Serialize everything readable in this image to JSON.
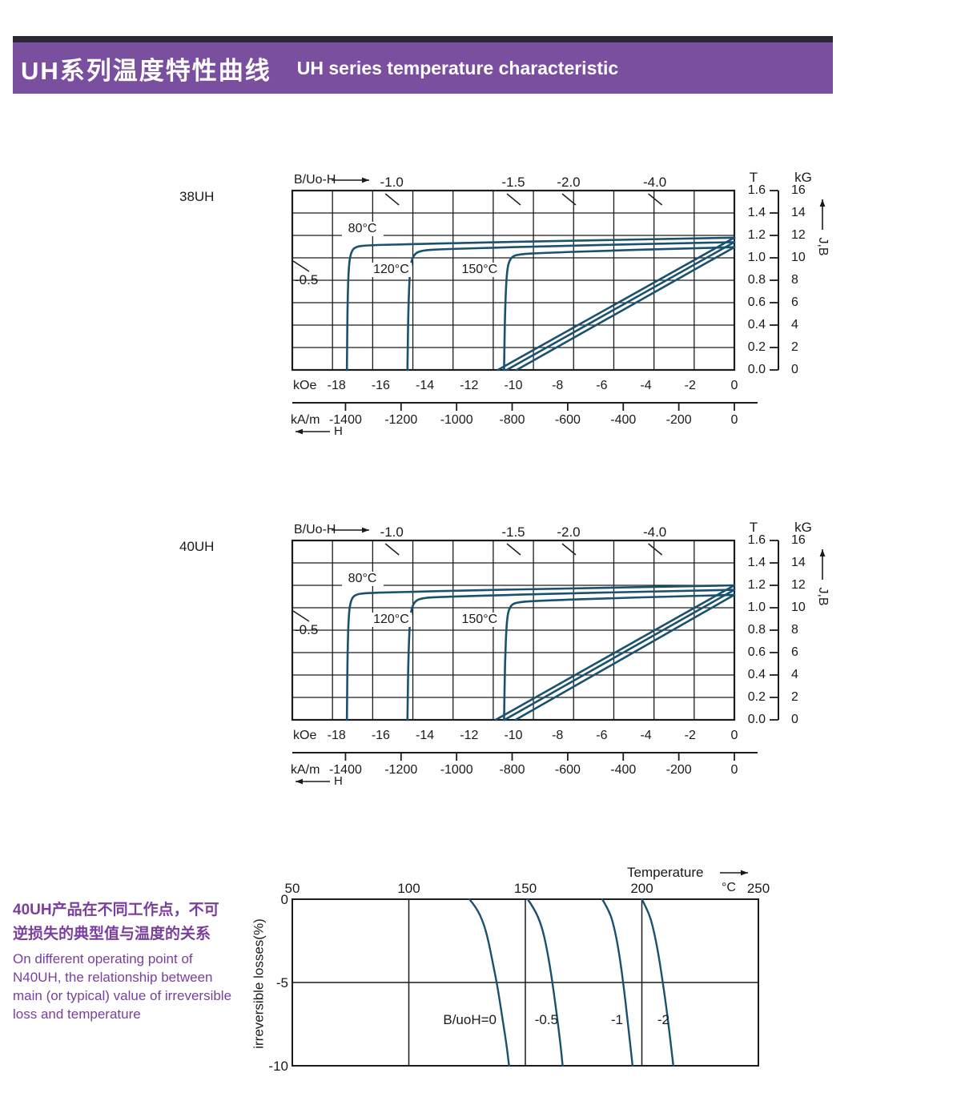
{
  "header": {
    "title_zh": "UH系列温度特性曲线",
    "title_en": "UH series temperature characteristic",
    "bg_color": "#7b4fa0",
    "strip_color": "#2c2734"
  },
  "side_text": {
    "zh1": "40UH产品在不同工作点，不可",
    "zh2": "逆损失的典型值与温度的关系",
    "en1": "On different operating point of",
    "en2": "N40UH,  the relationship between",
    "en3": "main (or typical) value of irreversible",
    "en4": "loss and temperature",
    "color": "#7a3f9d"
  },
  "colors": {
    "curve": "#19516f",
    "grid": "#1c1c1c",
    "text": "#1a1a1a"
  },
  "chart_data": [
    {
      "id": "bh38",
      "type": "line",
      "title": "38UH",
      "top_axis_label": "B/Uo-H",
      "h_arrow_label": "H",
      "right_axis_arrow_label": "J,B",
      "unit_koe": "kOe",
      "unit_kam": "kA/m",
      "unit_t": "T",
      "unit_kg": "kG",
      "xlim_kOe": [
        -20,
        0
      ],
      "ylim_T": [
        0,
        1.6
      ],
      "grid": {
        "cols": 11,
        "rows": 8
      },
      "x_ticks_kOe": [
        -18,
        -16,
        -14,
        -12,
        -10,
        -8,
        -6,
        -4,
        -2,
        0
      ],
      "x_ticks_kAm": [
        -1400,
        -1200,
        -1000,
        -800,
        -600,
        -400,
        -200,
        0
      ],
      "y_ticks_T": [
        "1.6",
        "1.4",
        "1.2",
        "1.0",
        "0.8",
        "0.6",
        "0.4",
        "0.2",
        "0.0"
      ],
      "y_ticks_kG": [
        "16",
        "14",
        "12",
        "10",
        "8",
        "6",
        "4",
        "2",
        "0"
      ],
      "load_lines_top": [
        {
          "label": "-1.0",
          "kOe": -15.5
        },
        {
          "label": "-1.5",
          "kOe": -10.0
        },
        {
          "label": "-2.0",
          "kOe": -7.5
        },
        {
          "label": "-4.0",
          "kOe": -3.6
        }
      ],
      "load_line_left": {
        "label": "-0.5",
        "T": 0.95
      },
      "temp_labels": [
        {
          "text": "80°C",
          "kOe": -16.9,
          "T": 1.26
        },
        {
          "text": "120°C",
          "kOe": -15.6,
          "T": 0.89
        },
        {
          "text": "150°C",
          "kOe": -11.6,
          "T": 0.89
        }
      ],
      "series": [
        {
          "name": "J-H 80°C",
          "smooth": true,
          "points": [
            [
              0,
              1.18
            ],
            [
              -4,
              1.165
            ],
            [
              -8,
              1.15
            ],
            [
              -12,
              1.135
            ],
            [
              -15,
              1.12
            ],
            [
              -16.6,
              1.112
            ],
            [
              -17.15,
              1.1
            ],
            [
              -17.35,
              1.05
            ],
            [
              -17.45,
              0.92
            ],
            [
              -17.5,
              0.6
            ],
            [
              -17.52,
              0.2
            ],
            [
              -17.53,
              0
            ]
          ]
        },
        {
          "name": "J-H 120°C",
          "smooth": true,
          "points": [
            [
              0,
              1.14
            ],
            [
              -4,
              1.124
            ],
            [
              -8,
              1.106
            ],
            [
              -11,
              1.09
            ],
            [
              -13,
              1.078
            ],
            [
              -14.2,
              1.068
            ],
            [
              -14.55,
              1.02
            ],
            [
              -14.68,
              0.9
            ],
            [
              -14.75,
              0.55
            ],
            [
              -14.78,
              0.15
            ],
            [
              -14.79,
              0
            ]
          ]
        },
        {
          "name": "J-H 150°C",
          "smooth": true,
          "points": [
            [
              0,
              1.095
            ],
            [
              -3,
              1.08
            ],
            [
              -6,
              1.062
            ],
            [
              -8.5,
              1.045
            ],
            [
              -9.8,
              1.032
            ],
            [
              -10.15,
              1.0
            ],
            [
              -10.3,
              0.88
            ],
            [
              -10.38,
              0.5
            ],
            [
              -10.41,
              0.1
            ],
            [
              -10.42,
              0
            ]
          ]
        },
        {
          "name": "B-H 80°C",
          "smooth": false,
          "points": [
            [
              0,
              1.18
            ],
            [
              -10.7,
              0
            ]
          ]
        },
        {
          "name": "B-H 120°C",
          "smooth": false,
          "points": [
            [
              0,
              1.14
            ],
            [
              -10.3,
              0
            ]
          ]
        },
        {
          "name": "B-H 150°C",
          "smooth": false,
          "points": [
            [
              0,
              1.095
            ],
            [
              -9.85,
              0
            ]
          ]
        }
      ]
    },
    {
      "id": "bh40",
      "type": "line",
      "title": "40UH",
      "top_axis_label": "B/Uo-H",
      "h_arrow_label": "H",
      "right_axis_arrow_label": "J,B",
      "unit_koe": "kOe",
      "unit_kam": "kA/m",
      "unit_t": "T",
      "unit_kg": "kG",
      "xlim_kOe": [
        -20,
        0
      ],
      "ylim_T": [
        0,
        1.6
      ],
      "grid": {
        "cols": 11,
        "rows": 8
      },
      "x_ticks_kOe": [
        -18,
        -16,
        -14,
        -12,
        -10,
        -8,
        -6,
        -4,
        -2,
        0
      ],
      "x_ticks_kAm": [
        -1400,
        -1200,
        -1000,
        -800,
        -600,
        -400,
        -200,
        0
      ],
      "y_ticks_T": [
        "1.6",
        "1.4",
        "1.2",
        "1.0",
        "0.8",
        "0.6",
        "0.4",
        "0.2",
        "0.0"
      ],
      "y_ticks_kG": [
        "16",
        "14",
        "12",
        "10",
        "8",
        "6",
        "4",
        "2",
        "0"
      ],
      "load_lines_top": [
        {
          "label": "-1.0",
          "kOe": -15.5
        },
        {
          "label": "-1.5",
          "kOe": -10.0
        },
        {
          "label": "-2.0",
          "kOe": -7.5
        },
        {
          "label": "-4.0",
          "kOe": -3.6
        }
      ],
      "load_line_left": {
        "label": "-0.5",
        "T": 0.95
      },
      "temp_labels": [
        {
          "text": "80°C",
          "kOe": -16.9,
          "T": 1.26
        },
        {
          "text": "120°C",
          "kOe": -15.6,
          "T": 0.89
        },
        {
          "text": "150°C",
          "kOe": -11.6,
          "T": 0.89
        }
      ],
      "series": [
        {
          "name": "J-H 80°C",
          "smooth": true,
          "points": [
            [
              0,
              1.2
            ],
            [
              -4,
              1.185
            ],
            [
              -8,
              1.17
            ],
            [
              -12,
              1.155
            ],
            [
              -15,
              1.14
            ],
            [
              -16.6,
              1.132
            ],
            [
              -17.15,
              1.12
            ],
            [
              -17.35,
              1.07
            ],
            [
              -17.45,
              0.94
            ],
            [
              -17.5,
              0.6
            ],
            [
              -17.52,
              0.2
            ],
            [
              -17.53,
              0
            ]
          ]
        },
        {
          "name": "J-H 120°C",
          "smooth": true,
          "points": [
            [
              0,
              1.16
            ],
            [
              -4,
              1.144
            ],
            [
              -8,
              1.126
            ],
            [
              -11,
              1.11
            ],
            [
              -13,
              1.098
            ],
            [
              -14.2,
              1.088
            ],
            [
              -14.55,
              1.04
            ],
            [
              -14.68,
              0.9
            ],
            [
              -14.75,
              0.55
            ],
            [
              -14.78,
              0.15
            ],
            [
              -14.79,
              0
            ]
          ]
        },
        {
          "name": "J-H 150°C",
          "smooth": true,
          "points": [
            [
              0,
              1.115
            ],
            [
              -3,
              1.1
            ],
            [
              -6,
              1.082
            ],
            [
              -8.5,
              1.065
            ],
            [
              -9.8,
              1.052
            ],
            [
              -10.15,
              1.02
            ],
            [
              -10.3,
              0.9
            ],
            [
              -10.38,
              0.5
            ],
            [
              -10.41,
              0.1
            ],
            [
              -10.42,
              0
            ]
          ]
        },
        {
          "name": "B-H 80°C",
          "smooth": false,
          "points": [
            [
              0,
              1.2
            ],
            [
              -10.8,
              0
            ]
          ]
        },
        {
          "name": "B-H 120°C",
          "smooth": false,
          "points": [
            [
              0,
              1.16
            ],
            [
              -10.4,
              0
            ]
          ]
        },
        {
          "name": "B-H 150°C",
          "smooth": false,
          "points": [
            [
              0,
              1.115
            ],
            [
              -9.9,
              0
            ]
          ]
        }
      ]
    },
    {
      "id": "loss",
      "type": "line",
      "xlabel": "Temperature",
      "x_unit": "°C",
      "ylabel": "irreversible  losses(%)",
      "xlim": [
        50,
        250
      ],
      "ylim": [
        -10,
        0
      ],
      "x_ticks": [
        "50",
        "100",
        "150",
        "200",
        "250"
      ],
      "x_tick_values": [
        50,
        100,
        150,
        200,
        250
      ],
      "y_ticks": [
        "0",
        "-5",
        "-10"
      ],
      "y_tick_values": [
        0,
        -5,
        -10
      ],
      "grid_x": [
        100,
        150,
        200
      ],
      "grid_y": [
        -5
      ],
      "series": [
        {
          "name": "B/uoH=0",
          "label": "B/uoH=0",
          "points": [
            [
              126,
              0
            ],
            [
              129,
              -0.5
            ],
            [
              132,
              -1.4
            ],
            [
              134,
              -2.4
            ],
            [
              136,
              -3.8
            ],
            [
              138,
              -5.2
            ],
            [
              140,
              -7
            ],
            [
              142,
              -8.8
            ],
            [
              143,
              -10
            ]
          ]
        },
        {
          "name": "-0.5",
          "label": "-0.5",
          "points": [
            [
              151,
              0
            ],
            [
              154,
              -0.6
            ],
            [
              157,
              -1.6
            ],
            [
              159,
              -2.8
            ],
            [
              161,
              -4.4
            ],
            [
              163,
              -6.4
            ],
            [
              165,
              -8.6
            ],
            [
              166,
              -10
            ]
          ]
        },
        {
          "name": "-1",
          "label": "-1",
          "points": [
            [
              183,
              0
            ],
            [
              186,
              -0.7
            ],
            [
              188,
              -1.6
            ],
            [
              190,
              -3
            ],
            [
              192,
              -5
            ],
            [
              194,
              -7.4
            ],
            [
              196,
              -10
            ]
          ]
        },
        {
          "name": "-2",
          "label": "-2",
          "points": [
            [
              200,
              0
            ],
            [
              203,
              -0.8
            ],
            [
              205,
              -1.8
            ],
            [
              207,
              -3.2
            ],
            [
              209,
              -5
            ],
            [
              211,
              -7
            ],
            [
              213.5,
              -10
            ]
          ]
        }
      ]
    }
  ]
}
